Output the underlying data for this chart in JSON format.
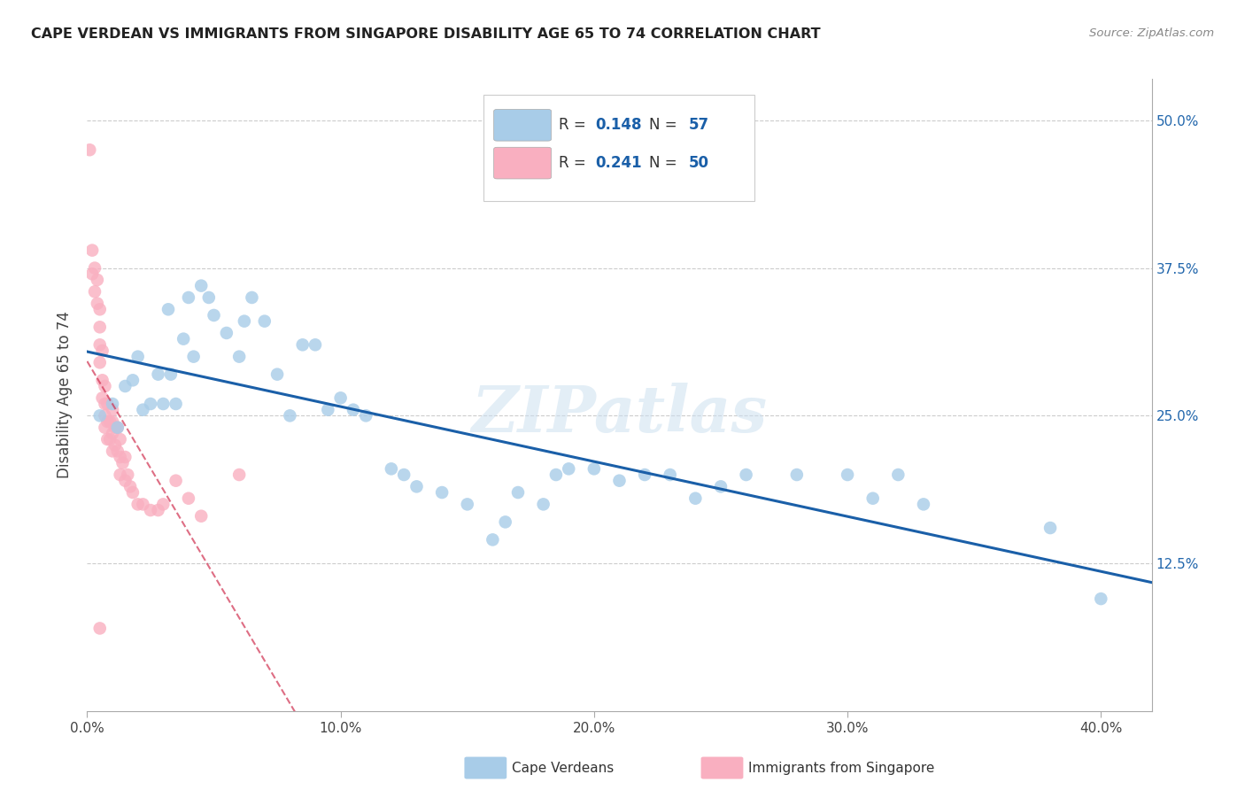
{
  "title": "CAPE VERDEAN VS IMMIGRANTS FROM SINGAPORE DISABILITY AGE 65 TO 74 CORRELATION CHART",
  "source": "Source: ZipAtlas.com",
  "ylabel": "Disability Age 65 to 74",
  "xlim": [
    0.0,
    0.42
  ],
  "ylim": [
    0.0,
    0.535
  ],
  "blue_color": "#a8cce8",
  "pink_color": "#f9afc0",
  "trend_blue": "#1a5fa8",
  "trend_pink": "#d03050",
  "watermark": "ZIPatlas",
  "blue_R": "0.148",
  "blue_N": "57",
  "pink_R": "0.241",
  "pink_N": "50",
  "legend_bottom_label1": "Cape Verdeans",
  "legend_bottom_label2": "Immigrants from Singapore",
  "ytick_values": [
    0.125,
    0.25,
    0.375,
    0.5
  ],
  "ytick_labels": [
    "12.5%",
    "25.0%",
    "37.5%",
    "50.0%"
  ],
  "xtick_values": [
    0.0,
    0.1,
    0.2,
    0.3,
    0.4
  ],
  "xtick_labels": [
    "0.0%",
    "10.0%",
    "20.0%",
    "30.0%",
    "40.0%"
  ],
  "blue_x": [
    0.005,
    0.01,
    0.012,
    0.015,
    0.018,
    0.02,
    0.022,
    0.025,
    0.028,
    0.03,
    0.032,
    0.033,
    0.035,
    0.038,
    0.04,
    0.042,
    0.045,
    0.048,
    0.05,
    0.055,
    0.06,
    0.062,
    0.065,
    0.07,
    0.075,
    0.08,
    0.085,
    0.09,
    0.095,
    0.1,
    0.105,
    0.11,
    0.12,
    0.125,
    0.13,
    0.14,
    0.15,
    0.16,
    0.165,
    0.17,
    0.18,
    0.185,
    0.19,
    0.2,
    0.21,
    0.22,
    0.23,
    0.24,
    0.25,
    0.26,
    0.28,
    0.3,
    0.31,
    0.32,
    0.33,
    0.38,
    0.4
  ],
  "blue_y": [
    0.25,
    0.26,
    0.24,
    0.275,
    0.28,
    0.3,
    0.255,
    0.26,
    0.285,
    0.26,
    0.34,
    0.285,
    0.26,
    0.315,
    0.35,
    0.3,
    0.36,
    0.35,
    0.335,
    0.32,
    0.3,
    0.33,
    0.35,
    0.33,
    0.285,
    0.25,
    0.31,
    0.31,
    0.255,
    0.265,
    0.255,
    0.25,
    0.205,
    0.2,
    0.19,
    0.185,
    0.175,
    0.145,
    0.16,
    0.185,
    0.175,
    0.2,
    0.205,
    0.205,
    0.195,
    0.2,
    0.2,
    0.18,
    0.19,
    0.2,
    0.2,
    0.2,
    0.18,
    0.2,
    0.175,
    0.155,
    0.095
  ],
  "pink_x": [
    0.001,
    0.002,
    0.002,
    0.003,
    0.003,
    0.004,
    0.004,
    0.005,
    0.005,
    0.005,
    0.005,
    0.006,
    0.006,
    0.006,
    0.007,
    0.007,
    0.007,
    0.007,
    0.008,
    0.008,
    0.008,
    0.009,
    0.009,
    0.01,
    0.01,
    0.01,
    0.01,
    0.011,
    0.011,
    0.012,
    0.012,
    0.013,
    0.013,
    0.013,
    0.014,
    0.015,
    0.015,
    0.016,
    0.017,
    0.018,
    0.02,
    0.022,
    0.025,
    0.028,
    0.03,
    0.035,
    0.04,
    0.045,
    0.06,
    0.005
  ],
  "pink_y": [
    0.475,
    0.39,
    0.37,
    0.375,
    0.355,
    0.345,
    0.365,
    0.34,
    0.325,
    0.31,
    0.295,
    0.305,
    0.28,
    0.265,
    0.275,
    0.26,
    0.25,
    0.24,
    0.26,
    0.245,
    0.23,
    0.245,
    0.23,
    0.255,
    0.245,
    0.235,
    0.22,
    0.24,
    0.225,
    0.24,
    0.22,
    0.23,
    0.215,
    0.2,
    0.21,
    0.215,
    0.195,
    0.2,
    0.19,
    0.185,
    0.175,
    0.175,
    0.17,
    0.17,
    0.175,
    0.195,
    0.18,
    0.165,
    0.2,
    0.07
  ]
}
